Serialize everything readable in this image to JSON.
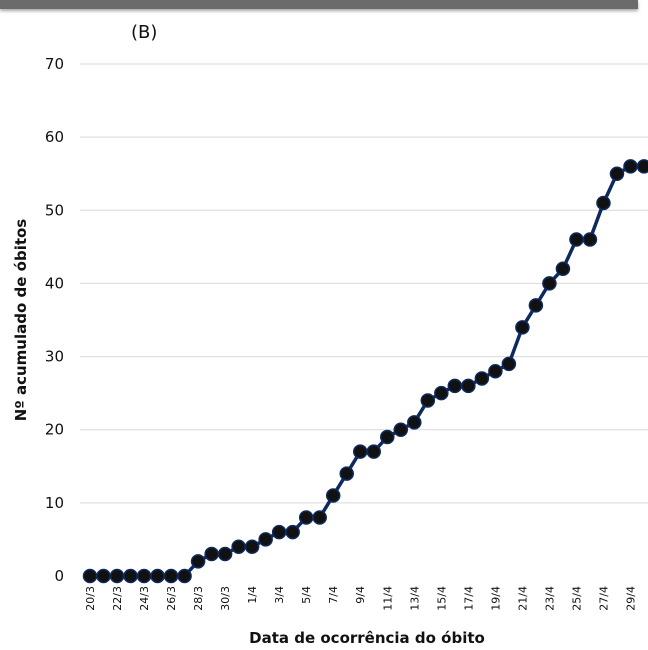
{
  "panel_label": "(B)",
  "chart_data": {
    "type": "line",
    "title": "",
    "xlabel": "Data de ocorrência do óbito",
    "ylabel": "Nº acumulado de óbitos",
    "ylim": [
      0,
      70
    ],
    "yticks": [
      0,
      10,
      20,
      30,
      40,
      50,
      60,
      70
    ],
    "grid": true,
    "categories": [
      "20/3",
      "21/3",
      "22/3",
      "23/3",
      "24/3",
      "25/3",
      "26/3",
      "27/3",
      "28/3",
      "29/3",
      "30/3",
      "31/3",
      "1/4",
      "2/4",
      "3/4",
      "4/4",
      "5/4",
      "6/4",
      "7/4",
      "8/4",
      "9/4",
      "10/4",
      "11/4",
      "12/4",
      "13/4",
      "14/4",
      "15/4",
      "16/4",
      "17/4",
      "18/4",
      "19/4",
      "20/4",
      "21/4",
      "22/4",
      "23/4",
      "24/4",
      "25/4",
      "26/4",
      "27/4",
      "28/4",
      "29/4",
      "30/4"
    ],
    "tick_labels": [
      "20/3",
      "22/3",
      "24/3",
      "26/3",
      "28/3",
      "30/3",
      "1/4",
      "3/4",
      "5/4",
      "7/4",
      "9/4",
      "11/4",
      "13/4",
      "15/4",
      "17/4",
      "19/4",
      "21/4",
      "23/4",
      "25/4",
      "27/4",
      "29/4"
    ],
    "series": [
      {
        "values": [
          0,
          0,
          0,
          0,
          0,
          0,
          0,
          0,
          2,
          3,
          3,
          4,
          4,
          5,
          6,
          6,
          8,
          8,
          11,
          14,
          17,
          17,
          19,
          20,
          21,
          24,
          25,
          26,
          26,
          27,
          28,
          29,
          34,
          37,
          40,
          42,
          46,
          46,
          51,
          55,
          56,
          56
        ],
        "line_color": "#0d2a5e",
        "marker_color": "#111111"
      }
    ]
  }
}
